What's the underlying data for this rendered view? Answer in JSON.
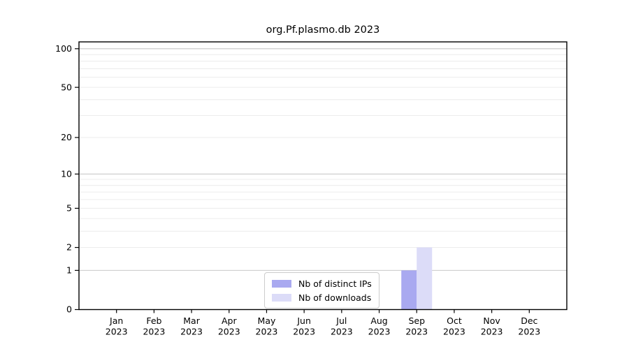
{
  "chart_data": {
    "type": "bar",
    "title": "org.Pf.plasmo.db 2023",
    "categories": [
      "Jan",
      "Feb",
      "Mar",
      "Apr",
      "May",
      "Jun",
      "Jul",
      "Aug",
      "Sep",
      "Oct",
      "Nov",
      "Dec"
    ],
    "category_year": "2023",
    "series": [
      {
        "name": "Nb of distinct IPs",
        "color": "#a9a9f0",
        "values": [
          0,
          0,
          0,
          0,
          0,
          0,
          0,
          0,
          1,
          0,
          0,
          0
        ]
      },
      {
        "name": "Nb of downloads",
        "color": "#dcdcf8",
        "values": [
          0,
          0,
          0,
          0,
          0,
          0,
          0,
          0,
          2,
          0,
          0,
          0
        ]
      }
    ],
    "yscale": "log1p",
    "ylim": [
      0,
      113
    ],
    "yticks": [
      0,
      1,
      2,
      5,
      10,
      20,
      50,
      100
    ],
    "major_gridlines": [
      1,
      10,
      100
    ],
    "minor_gridlines": [
      2,
      3,
      4,
      5,
      6,
      7,
      8,
      9,
      20,
      30,
      40,
      50,
      60,
      70,
      80,
      90
    ],
    "grid": true,
    "legend_position": "lower-center",
    "colors": {
      "axis": "#000000",
      "major_grid": "#c9c9c9",
      "minor_grid": "#ececec",
      "background": "#ffffff"
    }
  }
}
